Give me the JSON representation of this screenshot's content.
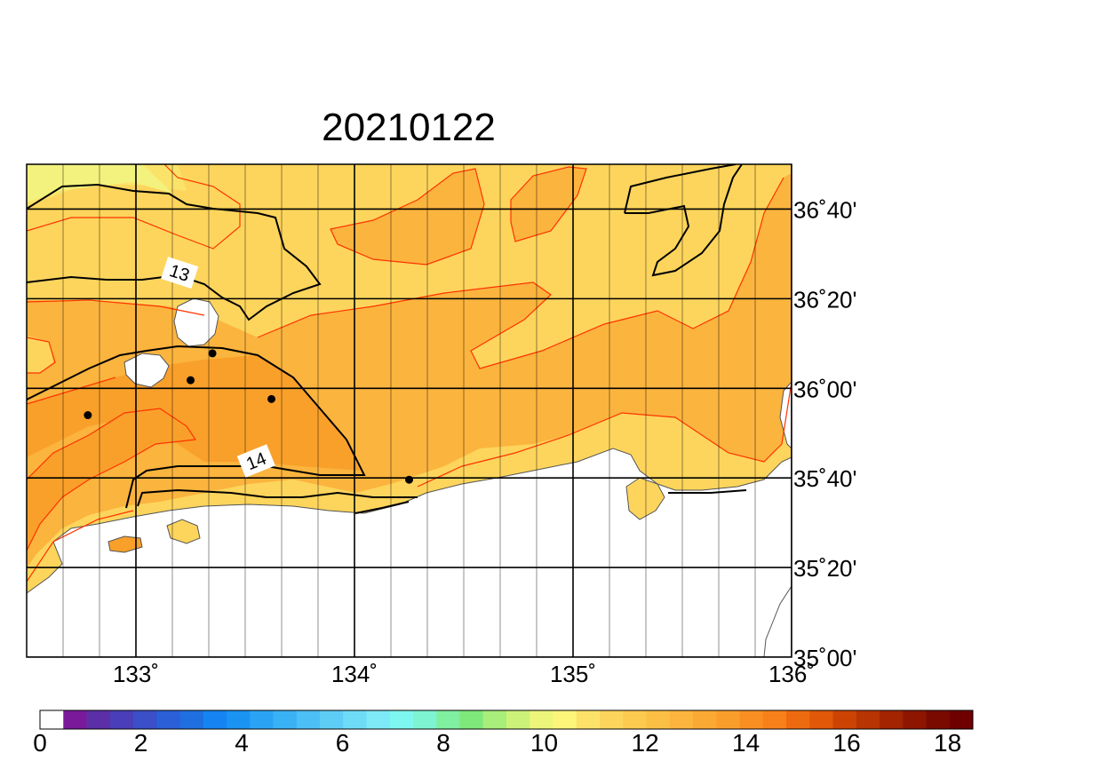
{
  "title": "20210122",
  "map": {
    "lon_range": [
      132.5,
      136.0
    ],
    "lat_range": [
      35.0,
      36.8333
    ],
    "lon_ticks": [
      {
        "value": 133,
        "label": "133˚"
      },
      {
        "value": 134,
        "label": "134˚"
      },
      {
        "value": 135,
        "label": "135˚"
      },
      {
        "value": 136,
        "label": "136˚"
      }
    ],
    "lat_ticks": [
      {
        "value": 35.0,
        "label": "35˚00'"
      },
      {
        "value": 35.3333,
        "label": "35˚20'"
      },
      {
        "value": 35.6667,
        "label": "35˚40'"
      },
      {
        "value": 36.0,
        "label": "36˚00'"
      },
      {
        "value": 36.3333,
        "label": "36˚20'"
      },
      {
        "value": 36.6667,
        "label": "36˚40'"
      }
    ],
    "contour_labels": [
      {
        "text": "13",
        "lon": 133.2,
        "lat": 36.43
      },
      {
        "text": "14",
        "lon": 133.55,
        "lat": 35.73
      }
    ],
    "stations": [
      {
        "lon": 132.78,
        "lat": 35.9
      },
      {
        "lon": 133.25,
        "lat": 36.03
      },
      {
        "lon": 133.35,
        "lat": 36.13
      },
      {
        "lon": 133.62,
        "lat": 35.96
      },
      {
        "lon": 134.25,
        "lat": 35.66
      }
    ],
    "colors": {
      "land": "#ffffff",
      "ocean_12_5": "#fdd55c",
      "ocean_13_5": "#fbb43e",
      "ocean_14_5": "#f9a02a",
      "ocean_11_5": "#fbe36a",
      "ocean_11": "#f3f27e",
      "contour_half": "#ff3300",
      "contour_integer": "#000000"
    }
  },
  "colorbar": {
    "colors": [
      "#ffffff",
      "#7a1a9b",
      "#5b2fa8",
      "#4a3fb8",
      "#3a4fc8",
      "#2b5fd8",
      "#1f6fe0",
      "#1584f0",
      "#1a93f2",
      "#2aa3f4",
      "#3ab1f5",
      "#4cbff6",
      "#5dcdf6",
      "#6edcf7",
      "#7eeaf8",
      "#7ef7f0",
      "#7ef4d2",
      "#80efa0",
      "#7fe87a",
      "#a8ee7a",
      "#cdf27a",
      "#ecf67a",
      "#fcf57a",
      "#fde26a",
      "#fdd55c",
      "#fdca50",
      "#fcbf45",
      "#fbb43e",
      "#faa935",
      "#f99e2c",
      "#f98f22",
      "#f8801a",
      "#ee6a10",
      "#e05808",
      "#cc4404",
      "#b83402",
      "#a22400",
      "#8e1600",
      "#7a0a00",
      "#6e0000"
    ],
    "labels": [
      {
        "value": 0,
        "label": "0"
      },
      {
        "value": 2,
        "label": "2"
      },
      {
        "value": 4,
        "label": "4"
      },
      {
        "value": 6,
        "label": "6"
      },
      {
        "value": 8,
        "label": "8"
      },
      {
        "value": 10,
        "label": "10"
      },
      {
        "value": 12,
        "label": "12"
      },
      {
        "value": 14,
        "label": "14"
      },
      {
        "value": 16,
        "label": "16"
      },
      {
        "value": 18,
        "label": "18"
      }
    ],
    "range": [
      0,
      18.5
    ]
  }
}
